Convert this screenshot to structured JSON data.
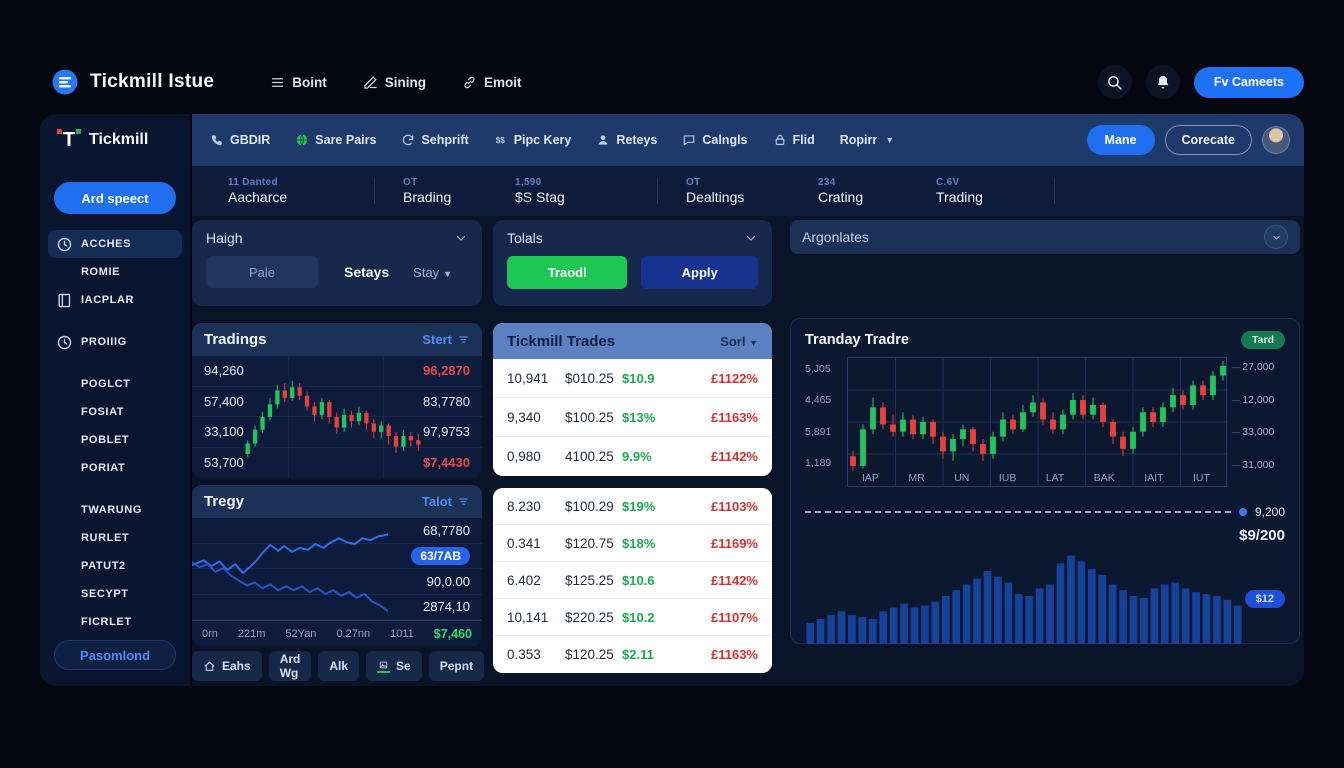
{
  "topbar": {
    "brand": "Tickmill Istue",
    "nav": [
      {
        "label": "Boint",
        "icon": "menu"
      },
      {
        "label": "Sining",
        "icon": "pen"
      },
      {
        "label": "Emoit",
        "icon": "link"
      }
    ],
    "cta": "Fv Cameets"
  },
  "navbar": {
    "brand": "Tickmill",
    "items": [
      {
        "label": "GBDIR",
        "icon": "phone"
      },
      {
        "label": "Sare Pairs",
        "icon": "globe"
      },
      {
        "label": "Sehprift",
        "icon": "refresh"
      },
      {
        "label": "Pipc Kery",
        "icon": "dollars"
      },
      {
        "label": "Reteys",
        "icon": "person"
      },
      {
        "label": "Calngls",
        "icon": "chat"
      },
      {
        "label": "Flid",
        "icon": "lock"
      },
      {
        "label": "Ropirr",
        "icon": "none",
        "caret": true
      }
    ],
    "primary_button": "Mane",
    "secondary_button": "Corecate"
  },
  "sidebar": {
    "add_button": "Ard speect",
    "items": [
      {
        "label": "ACCHES",
        "icon": "clock",
        "active": true
      },
      {
        "label": "ROMIE"
      },
      {
        "label": "IACPLAR",
        "icon": "book"
      },
      {
        "label": "PROIIIG",
        "icon": "clock",
        "gap": true
      },
      {
        "label": "POGLCT",
        "gap": true
      },
      {
        "label": "FOSIAT"
      },
      {
        "label": "POBLET"
      },
      {
        "label": "PORIAT"
      },
      {
        "label": "TWARUNG",
        "gap": true
      },
      {
        "label": "RURLET"
      },
      {
        "label": "PATUT2"
      },
      {
        "label": "SECYPT"
      },
      {
        "label": "FICRLET"
      }
    ],
    "bottom_button": "Pasomlond"
  },
  "stats": [
    {
      "sub": "11 Danted",
      "label": "Aacharce",
      "divider": true
    },
    {
      "sub": "OT",
      "label": "Brading"
    },
    {
      "sub": "1,590",
      "label": "$S Stag",
      "divider": true
    },
    {
      "sub": "OT",
      "label": "Dealtings"
    },
    {
      "sub": "234",
      "label": "Crating"
    },
    {
      "sub": "C.6V",
      "label": "Trading",
      "divider": true
    }
  ],
  "panels": {
    "haigh": {
      "title": "Haigh",
      "pale": "Pale",
      "setays": "Setays",
      "stay": "Stay"
    },
    "tolals": {
      "title": "Tolals",
      "traodl": "Traodl",
      "apply": "Apply"
    },
    "tradings": {
      "title": "Tradings",
      "action": "Stert",
      "rows": [
        {
          "left": "94,260",
          "right": "96,2870",
          "right_color": "red"
        },
        {
          "left": "57,400",
          "right": "83,7780",
          "right_color": "white"
        },
        {
          "left": "33,100",
          "right": "97,9753",
          "right_color": "white"
        },
        {
          "left": "53,700",
          "right": "$7,4430",
          "right_color": "red"
        }
      ]
    },
    "tregy": {
      "title": "Tregy",
      "action": "Talot",
      "right_labels": [
        {
          "text": "68,7780"
        },
        {
          "text": "63/7AB",
          "pill": true
        },
        {
          "text": "90,0.00"
        },
        {
          "text": "2874,10"
        }
      ],
      "x_labels": [
        "0rn",
        "221m",
        "52Yan",
        "0.27nn",
        "1011"
      ],
      "x_value": "$7,460"
    },
    "footer_buttons": [
      {
        "label": "Eahs",
        "icon": "home"
      },
      {
        "label": "Ard Wg"
      },
      {
        "label": "Alk"
      },
      {
        "label": "Se",
        "icon": "image",
        "accent": true
      },
      {
        "label": "Pepnt"
      }
    ]
  },
  "trades_table": {
    "title": "Tickmill Trades",
    "sort": "Sorl",
    "rows": [
      {
        "qty": "10,941",
        "price": "$010.25",
        "green": "$10.9",
        "red": "£1122%"
      },
      {
        "qty": "9,340",
        "price": "$100.25",
        "green": "$13%",
        "red": "£1163%"
      },
      {
        "qty": "0,980",
        "price": "4100.25",
        "green": "9.9%",
        "red": "£1142%"
      }
    ],
    "rows2": [
      {
        "qty": "8.230",
        "price": "$100.29",
        "green": "$19%",
        "red": "£1103%"
      },
      {
        "qty": "0.341",
        "price": "$120.75",
        "green": "$18%",
        "red": "£1169%"
      },
      {
        "qty": "6.402",
        "price": "$125.25",
        "green": "$10.6",
        "red": "£1142%"
      },
      {
        "qty": "10,141",
        "price": "$220.25",
        "green": "$10.2",
        "red": "£1107%"
      },
      {
        "qty": "0.353",
        "price": "$120.25",
        "green": "$2.11",
        "red": "£1163%"
      }
    ]
  },
  "argonlates": {
    "title": "Argonlates"
  },
  "tranday": {
    "title": "Tranday Tradre",
    "badge": "Tard",
    "marker_label": "9,200",
    "big_label": "$9/200",
    "badge2": "$12"
  },
  "colors": {
    "accent_blue": "#1f6ff0",
    "candle_green": "#22c55e",
    "candle_red": "#e8403c",
    "line_blue": "#2e6fe8",
    "volume_blue": "#16429c",
    "table_header_blue": "#5b81c2",
    "green_button": "#1ec653",
    "red_text": "#d4302e",
    "green_text": "#1aa851"
  },
  "chart_data": [
    {
      "id": "tradings-candles",
      "type": "candlestick",
      "title": "Tradings",
      "note": "values normalized 0-100 as [open, close, low, high]; axis rows show 94,260 / 57,400 / 33,100 / 53,700",
      "candles": [
        [
          15,
          25,
          12,
          28
        ],
        [
          25,
          38,
          22,
          42
        ],
        [
          38,
          50,
          35,
          55
        ],
        [
          50,
          62,
          47,
          68
        ],
        [
          62,
          75,
          58,
          80
        ],
        [
          75,
          68,
          64,
          82
        ],
        [
          68,
          78,
          65,
          84
        ],
        [
          78,
          70,
          66,
          82
        ],
        [
          70,
          60,
          56,
          74
        ],
        [
          60,
          52,
          46,
          64
        ],
        [
          52,
          64,
          48,
          68
        ],
        [
          64,
          50,
          44,
          66
        ],
        [
          50,
          40,
          34,
          54
        ],
        [
          40,
          52,
          36,
          58
        ],
        [
          52,
          46,
          40,
          56
        ],
        [
          46,
          54,
          42,
          60
        ],
        [
          54,
          44,
          38,
          56
        ],
        [
          44,
          36,
          30,
          48
        ],
        [
          36,
          42,
          30,
          46
        ],
        [
          42,
          32,
          24,
          44
        ],
        [
          32,
          22,
          16,
          36
        ],
        [
          22,
          32,
          18,
          38
        ],
        [
          32,
          28,
          22,
          36
        ],
        [
          28,
          24,
          18,
          34
        ]
      ]
    },
    {
      "id": "tregy-lines",
      "type": "line",
      "title": "Tregy",
      "series": [
        {
          "name": "upper",
          "points": [
            [
              0,
              55
            ],
            [
              6,
              60
            ],
            [
              10,
              54
            ],
            [
              14,
              59
            ],
            [
              18,
              50
            ],
            [
              22,
              56
            ],
            [
              26,
              47
            ],
            [
              30,
              54
            ],
            [
              33,
              60
            ],
            [
              36,
              68
            ],
            [
              40,
              76
            ],
            [
              44,
              70
            ],
            [
              47,
              75
            ],
            [
              51,
              69
            ],
            [
              55,
              73
            ],
            [
              59,
              71
            ],
            [
              63,
              77
            ],
            [
              67,
              73
            ],
            [
              71,
              79
            ],
            [
              75,
              83
            ],
            [
              79,
              79
            ],
            [
              83,
              77
            ],
            [
              87,
              83
            ],
            [
              91,
              81
            ],
            [
              95,
              85
            ],
            [
              100,
              87
            ]
          ]
        },
        {
          "name": "lower",
          "points": [
            [
              0,
              58
            ],
            [
              4,
              53
            ],
            [
              8,
              56
            ],
            [
              12,
              48
            ],
            [
              16,
              52
            ],
            [
              20,
              44
            ],
            [
              24,
              39
            ],
            [
              28,
              34
            ],
            [
              32,
              37
            ],
            [
              36,
              31
            ],
            [
              40,
              35
            ],
            [
              44,
              29
            ],
            [
              48,
              33
            ],
            [
              52,
              29
            ],
            [
              56,
              33
            ],
            [
              60,
              27
            ],
            [
              64,
              31
            ],
            [
              68,
              25
            ],
            [
              72,
              29
            ],
            [
              76,
              23
            ],
            [
              80,
              27
            ],
            [
              84,
              21
            ],
            [
              88,
              25
            ],
            [
              92,
              17
            ],
            [
              96,
              13
            ],
            [
              100,
              7
            ]
          ]
        }
      ]
    },
    {
      "id": "tranday-candles",
      "type": "candlestick",
      "title": "Tranday Tradre",
      "left_ticks": [
        "5,J05",
        "4,465",
        "5,891",
        "1,189"
      ],
      "right_ticks": [
        "27,000",
        "12,000",
        "33,000",
        "31,000"
      ],
      "x_ticks": [
        "IAP",
        "MR",
        "UN",
        "IUB",
        "LAT",
        "BAK",
        "IAIT",
        "IUT"
      ],
      "grid": true,
      "candles": [
        [
          22,
          14,
          10,
          26
        ],
        [
          14,
          44,
          12,
          48
        ],
        [
          44,
          62,
          40,
          70
        ],
        [
          62,
          48,
          44,
          66
        ],
        [
          48,
          42,
          38,
          56
        ],
        [
          42,
          52,
          38,
          58
        ],
        [
          52,
          40,
          36,
          56
        ],
        [
          40,
          50,
          36,
          54
        ],
        [
          50,
          38,
          32,
          52
        ],
        [
          38,
          26,
          20,
          42
        ],
        [
          26,
          36,
          18,
          40
        ],
        [
          36,
          44,
          30,
          48
        ],
        [
          44,
          32,
          26,
          46
        ],
        [
          32,
          24,
          18,
          36
        ],
        [
          24,
          38,
          20,
          42
        ],
        [
          38,
          52,
          34,
          58
        ],
        [
          52,
          44,
          40,
          56
        ],
        [
          44,
          58,
          42,
          64
        ],
        [
          58,
          66,
          54,
          72
        ],
        [
          66,
          52,
          48,
          70
        ],
        [
          52,
          44,
          40,
          58
        ],
        [
          44,
          56,
          40,
          60
        ],
        [
          56,
          68,
          52,
          74
        ],
        [
          68,
          56,
          52,
          72
        ],
        [
          56,
          64,
          52,
          70
        ],
        [
          64,
          50,
          46,
          66
        ],
        [
          50,
          38,
          32,
          52
        ],
        [
          38,
          28,
          22,
          42
        ],
        [
          28,
          42,
          24,
          46
        ],
        [
          42,
          58,
          38,
          62
        ],
        [
          58,
          50,
          46,
          62
        ],
        [
          50,
          62,
          46,
          66
        ],
        [
          62,
          72,
          58,
          78
        ],
        [
          72,
          64,
          60,
          76
        ],
        [
          64,
          80,
          60,
          84
        ],
        [
          80,
          72,
          68,
          84
        ],
        [
          72,
          88,
          68,
          92
        ],
        [
          88,
          96,
          84,
          100
        ]
      ]
    },
    {
      "id": "volume-bars",
      "type": "bar",
      "title": "volume",
      "marker_value": "9,200",
      "values": [
        22,
        26,
        30,
        34,
        30,
        28,
        26,
        34,
        38,
        42,
        38,
        40,
        44,
        50,
        56,
        62,
        68,
        76,
        70,
        64,
        52,
        50,
        58,
        62,
        84,
        92,
        86,
        78,
        72,
        62,
        56,
        50,
        48,
        58,
        62,
        64,
        58,
        54,
        52,
        50,
        46,
        40
      ]
    }
  ]
}
